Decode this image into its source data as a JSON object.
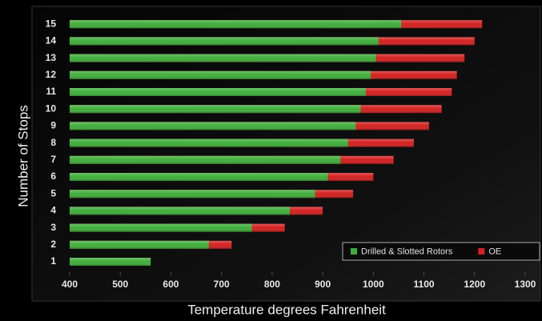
{
  "chart_data": {
    "type": "hbar-overlap",
    "x_label": "Temperature degrees Fahrenheit",
    "y_label": "Number of Stops",
    "categories": [
      "1",
      "2",
      "3",
      "4",
      "5",
      "6",
      "7",
      "8",
      "9",
      "10",
      "11",
      "12",
      "13",
      "14",
      "15"
    ],
    "series": [
      {
        "name": "OE",
        "color": "#d42020",
        "values": [
          null,
          720,
          825,
          900,
          960,
          1000,
          1040,
          1080,
          1110,
          1135,
          1155,
          1165,
          1180,
          1200,
          1215
        ]
      },
      {
        "name": "Drilled & Slotted Rotors",
        "color": "#3fae3a",
        "values": [
          560,
          675,
          760,
          835,
          885,
          910,
          935,
          950,
          965,
          975,
          985,
          995,
          1005,
          1010,
          1055
        ]
      }
    ],
    "legend_order": [
      1,
      0
    ],
    "xlim": [
      400,
      1300
    ],
    "xticks": [
      400,
      500,
      600,
      700,
      800,
      900,
      1000,
      1100,
      1200,
      1300
    ],
    "legend": "lower right"
  }
}
